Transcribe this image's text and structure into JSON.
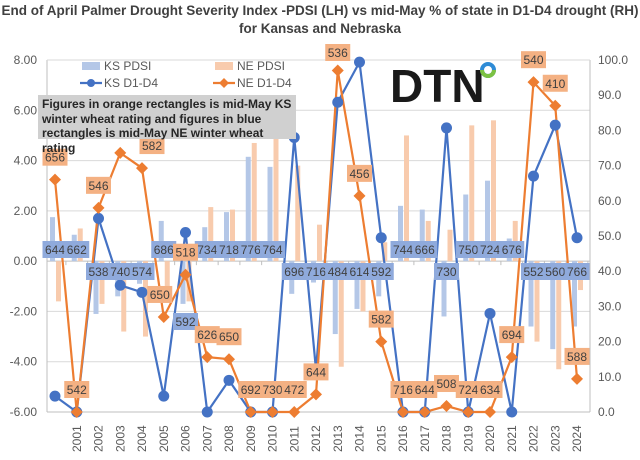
{
  "chart_data": {
    "type": "bar+line",
    "title": "End of April Palmer Drought Severity Index -PDSI (LH) vs mid-May % of state in D1-D4 drought (RH) for Kansas and Nebraska",
    "categories": [
      "",
      "2001",
      "2002",
      "2003",
      "2004",
      "2005",
      "2006",
      "2007",
      "2008",
      "2009",
      "2010",
      "2011",
      "2012",
      "2013",
      "2014",
      "2015",
      "2016",
      "2017",
      "2018",
      "2019",
      "2020",
      "2021",
      "2022",
      "2023",
      "2024"
    ],
    "left_axis": {
      "ylim": [
        -6,
        8
      ],
      "tick_labels": [
        "8.00",
        "6.00",
        "4.00",
        "2.00",
        "0.00",
        "-2.00",
        "-4.00",
        "-6.00"
      ]
    },
    "right_axis": {
      "ylim": [
        0,
        100
      ],
      "tick_labels": [
        "100.0",
        "90.0",
        "80.0",
        "70.0",
        "60.0",
        "50.0",
        "40.0",
        "30.0",
        "20.0",
        "10.0",
        "0.0"
      ]
    },
    "grid": true,
    "legend_placement": "top-left inside plot",
    "series": [
      {
        "name": "KS PDSI",
        "type": "bar",
        "axis": "left",
        "color": "#b4c7e7",
        "values": [
          1.75,
          1.05,
          -2.1,
          -1.4,
          -0.9,
          1.6,
          -1.7,
          1.35,
          1.95,
          4.15,
          3.75,
          -1.3,
          -0.85,
          -2.9,
          -1.9,
          -1.4,
          2.2,
          2.05,
          -2.2,
          2.65,
          3.2,
          0.9,
          -2.6,
          -3.5,
          -2.6
        ]
      },
      {
        "name": "NE PDSI",
        "type": "bar",
        "axis": "left",
        "color": "#f8cbad",
        "values": [
          -1.6,
          1.3,
          -1.7,
          -2.8,
          -3.0,
          -1.1,
          -1.6,
          2.15,
          2.05,
          4.7,
          5.3,
          3.8,
          1.45,
          -4.2,
          -2.0,
          0.75,
          5.0,
          1.6,
          1.25,
          5.4,
          5.6,
          1.6,
          -3.2,
          -4.3,
          -1.15
        ]
      },
      {
        "name": "KS D1-D4",
        "type": "line",
        "axis": "right",
        "color": "#4472c4",
        "marker": "circle",
        "values": [
          4.5,
          0,
          55,
          36,
          34,
          4.5,
          51,
          0,
          9,
          0,
          0,
          78,
          12,
          88,
          99.4,
          49.5,
          0,
          0,
          80.7,
          0,
          28,
          0,
          67,
          81.5,
          49.5
        ]
      },
      {
        "name": "NE D1-D4",
        "type": "line",
        "axis": "right",
        "color": "#ed7d31",
        "marker": "diamond",
        "values": [
          66,
          0,
          58,
          73.6,
          69.3,
          27,
          39,
          15.6,
          15,
          0,
          0,
          0,
          5,
          97,
          61.4,
          20,
          0,
          0,
          1.7,
          0,
          0,
          15.6,
          93.7,
          87,
          9.4
        ]
      }
    ],
    "annotations": {
      "ks_wheat_rating_orange": [
        "656",
        "542",
        "546",
        null,
        "582",
        "650",
        "518",
        "626",
        "650",
        "692",
        "730",
        "472",
        "644",
        "536",
        "456",
        "582",
        "716",
        "644",
        "508",
        "724",
        "634",
        "694",
        "540",
        "410",
        "588"
      ],
      "ne_wheat_rating_blue": [
        "644",
        "662",
        "538",
        "740",
        "574",
        "686",
        "592",
        "734",
        "718",
        "776",
        "764",
        "696",
        "716",
        "484",
        "614",
        "592",
        "744",
        "666",
        "730",
        "750",
        "724",
        "676",
        "552",
        "560",
        "766"
      ],
      "note": "Figures in orange rectangles is mid-May KS winter wheat rating and figures in blue rectangles is mid-May NE winter wheat rating",
      "orange_box_color": "#f4b183",
      "blue_box_color": "#8faadc"
    }
  },
  "logo": {
    "text": "DTN",
    "colors": [
      "#1a1a1a",
      "#2e8bd6",
      "#7cc242"
    ]
  }
}
